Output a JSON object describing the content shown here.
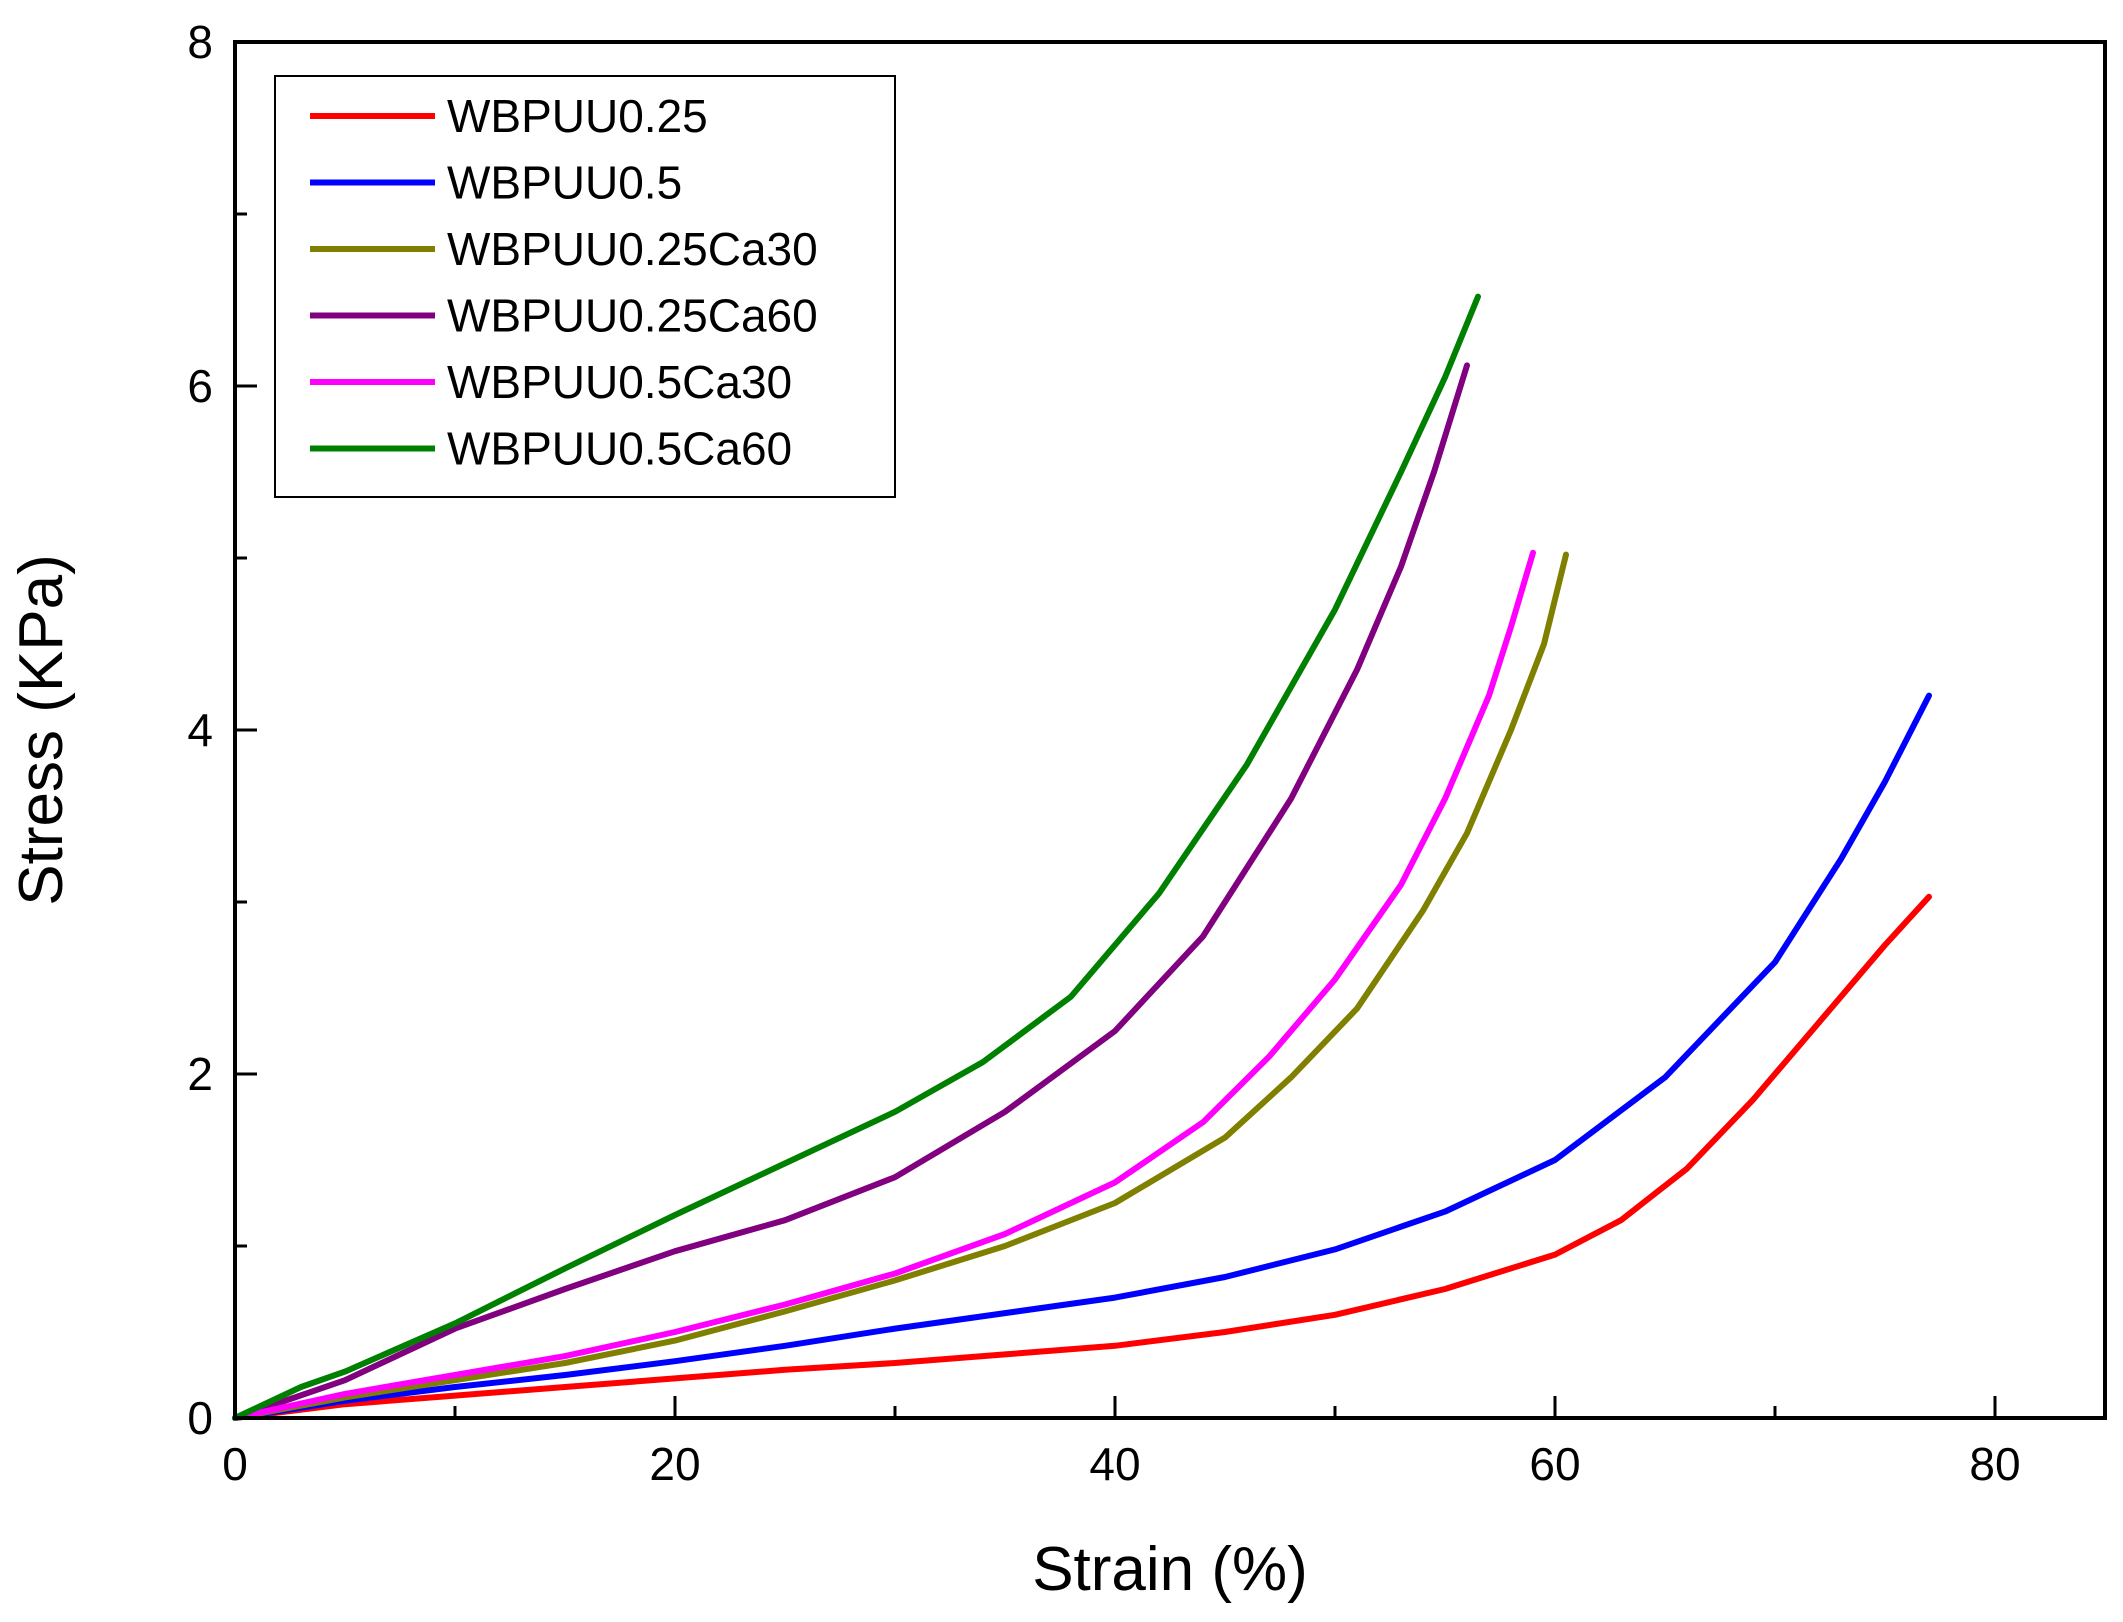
{
  "chart_data": {
    "type": "line",
    "title": "",
    "xlabel": "Strain (%)",
    "ylabel": "Stress (KPa)",
    "xlim": [
      0,
      85
    ],
    "ylim": [
      0,
      8
    ],
    "x_major_ticks": [
      0,
      20,
      40,
      60,
      80
    ],
    "x_tick_labels": [
      "0",
      "20",
      "40",
      "60",
      "80"
    ],
    "y_major_ticks": [
      0,
      2,
      4,
      6,
      8
    ],
    "y_tick_labels": [
      "0",
      "2",
      "4",
      "6",
      "8"
    ],
    "x_minor_ticks": [
      10,
      30,
      50,
      70
    ],
    "y_minor_ticks": [
      1,
      3,
      5,
      7
    ],
    "grid": false,
    "legend_position": "top-left",
    "series": [
      {
        "name": "WBPUU0.25",
        "color": "#ff0000",
        "x": [
          0,
          5,
          10,
          15,
          20,
          25,
          30,
          35,
          40,
          45,
          50,
          55,
          60,
          63,
          66,
          69,
          72,
          75,
          77
        ],
        "y": [
          0,
          0.08,
          0.13,
          0.18,
          0.23,
          0.28,
          0.32,
          0.37,
          0.42,
          0.5,
          0.6,
          0.75,
          0.95,
          1.15,
          1.45,
          1.85,
          2.3,
          2.75,
          3.03
        ]
      },
      {
        "name": "WBPUU0.5",
        "color": "#0000ff",
        "x": [
          0,
          5,
          10,
          15,
          20,
          25,
          30,
          35,
          40,
          45,
          50,
          55,
          60,
          65,
          70,
          73,
          75,
          77
        ],
        "y": [
          0,
          0.1,
          0.18,
          0.25,
          0.33,
          0.42,
          0.52,
          0.61,
          0.7,
          0.82,
          0.98,
          1.2,
          1.5,
          1.98,
          2.65,
          3.25,
          3.7,
          4.2
        ]
      },
      {
        "name": "WBPUU0.25Ca30",
        "color": "#808000",
        "x": [
          0,
          5,
          10,
          15,
          20,
          25,
          30,
          35,
          40,
          45,
          48,
          51,
          54,
          56,
          58,
          59.5,
          60.5
        ],
        "y": [
          0,
          0.12,
          0.22,
          0.32,
          0.45,
          0.62,
          0.8,
          1.0,
          1.25,
          1.63,
          1.98,
          2.38,
          2.95,
          3.4,
          4.0,
          4.5,
          5.02
        ]
      },
      {
        "name": "WBPUU0.25Ca60",
        "color": "#800080",
        "x": [
          0,
          5,
          10,
          15,
          20,
          25,
          30,
          35,
          40,
          44,
          48,
          51,
          53,
          54.5,
          56
        ],
        "y": [
          0,
          0.22,
          0.52,
          0.75,
          0.97,
          1.15,
          1.4,
          1.78,
          2.25,
          2.8,
          3.6,
          4.35,
          4.95,
          5.5,
          6.12
        ]
      },
      {
        "name": "WBPUU0.5Ca30",
        "color": "#ff00ff",
        "x": [
          0,
          5,
          10,
          15,
          20,
          25,
          30,
          35,
          40,
          44,
          47,
          50,
          53,
          55,
          57,
          58,
          59
        ],
        "y": [
          0,
          0.14,
          0.25,
          0.36,
          0.5,
          0.66,
          0.84,
          1.07,
          1.37,
          1.72,
          2.1,
          2.55,
          3.1,
          3.6,
          4.2,
          4.6,
          5.03
        ]
      },
      {
        "name": "WBPUU0.5Ca60",
        "color": "#008000",
        "x": [
          0,
          3,
          5,
          10,
          15,
          20,
          25,
          30,
          34,
          38,
          42,
          46,
          50,
          53,
          55,
          56.5
        ],
        "y": [
          0,
          0.18,
          0.27,
          0.55,
          0.87,
          1.18,
          1.48,
          1.78,
          2.07,
          2.45,
          3.05,
          3.8,
          4.7,
          5.5,
          6.05,
          6.52
        ]
      }
    ]
  }
}
